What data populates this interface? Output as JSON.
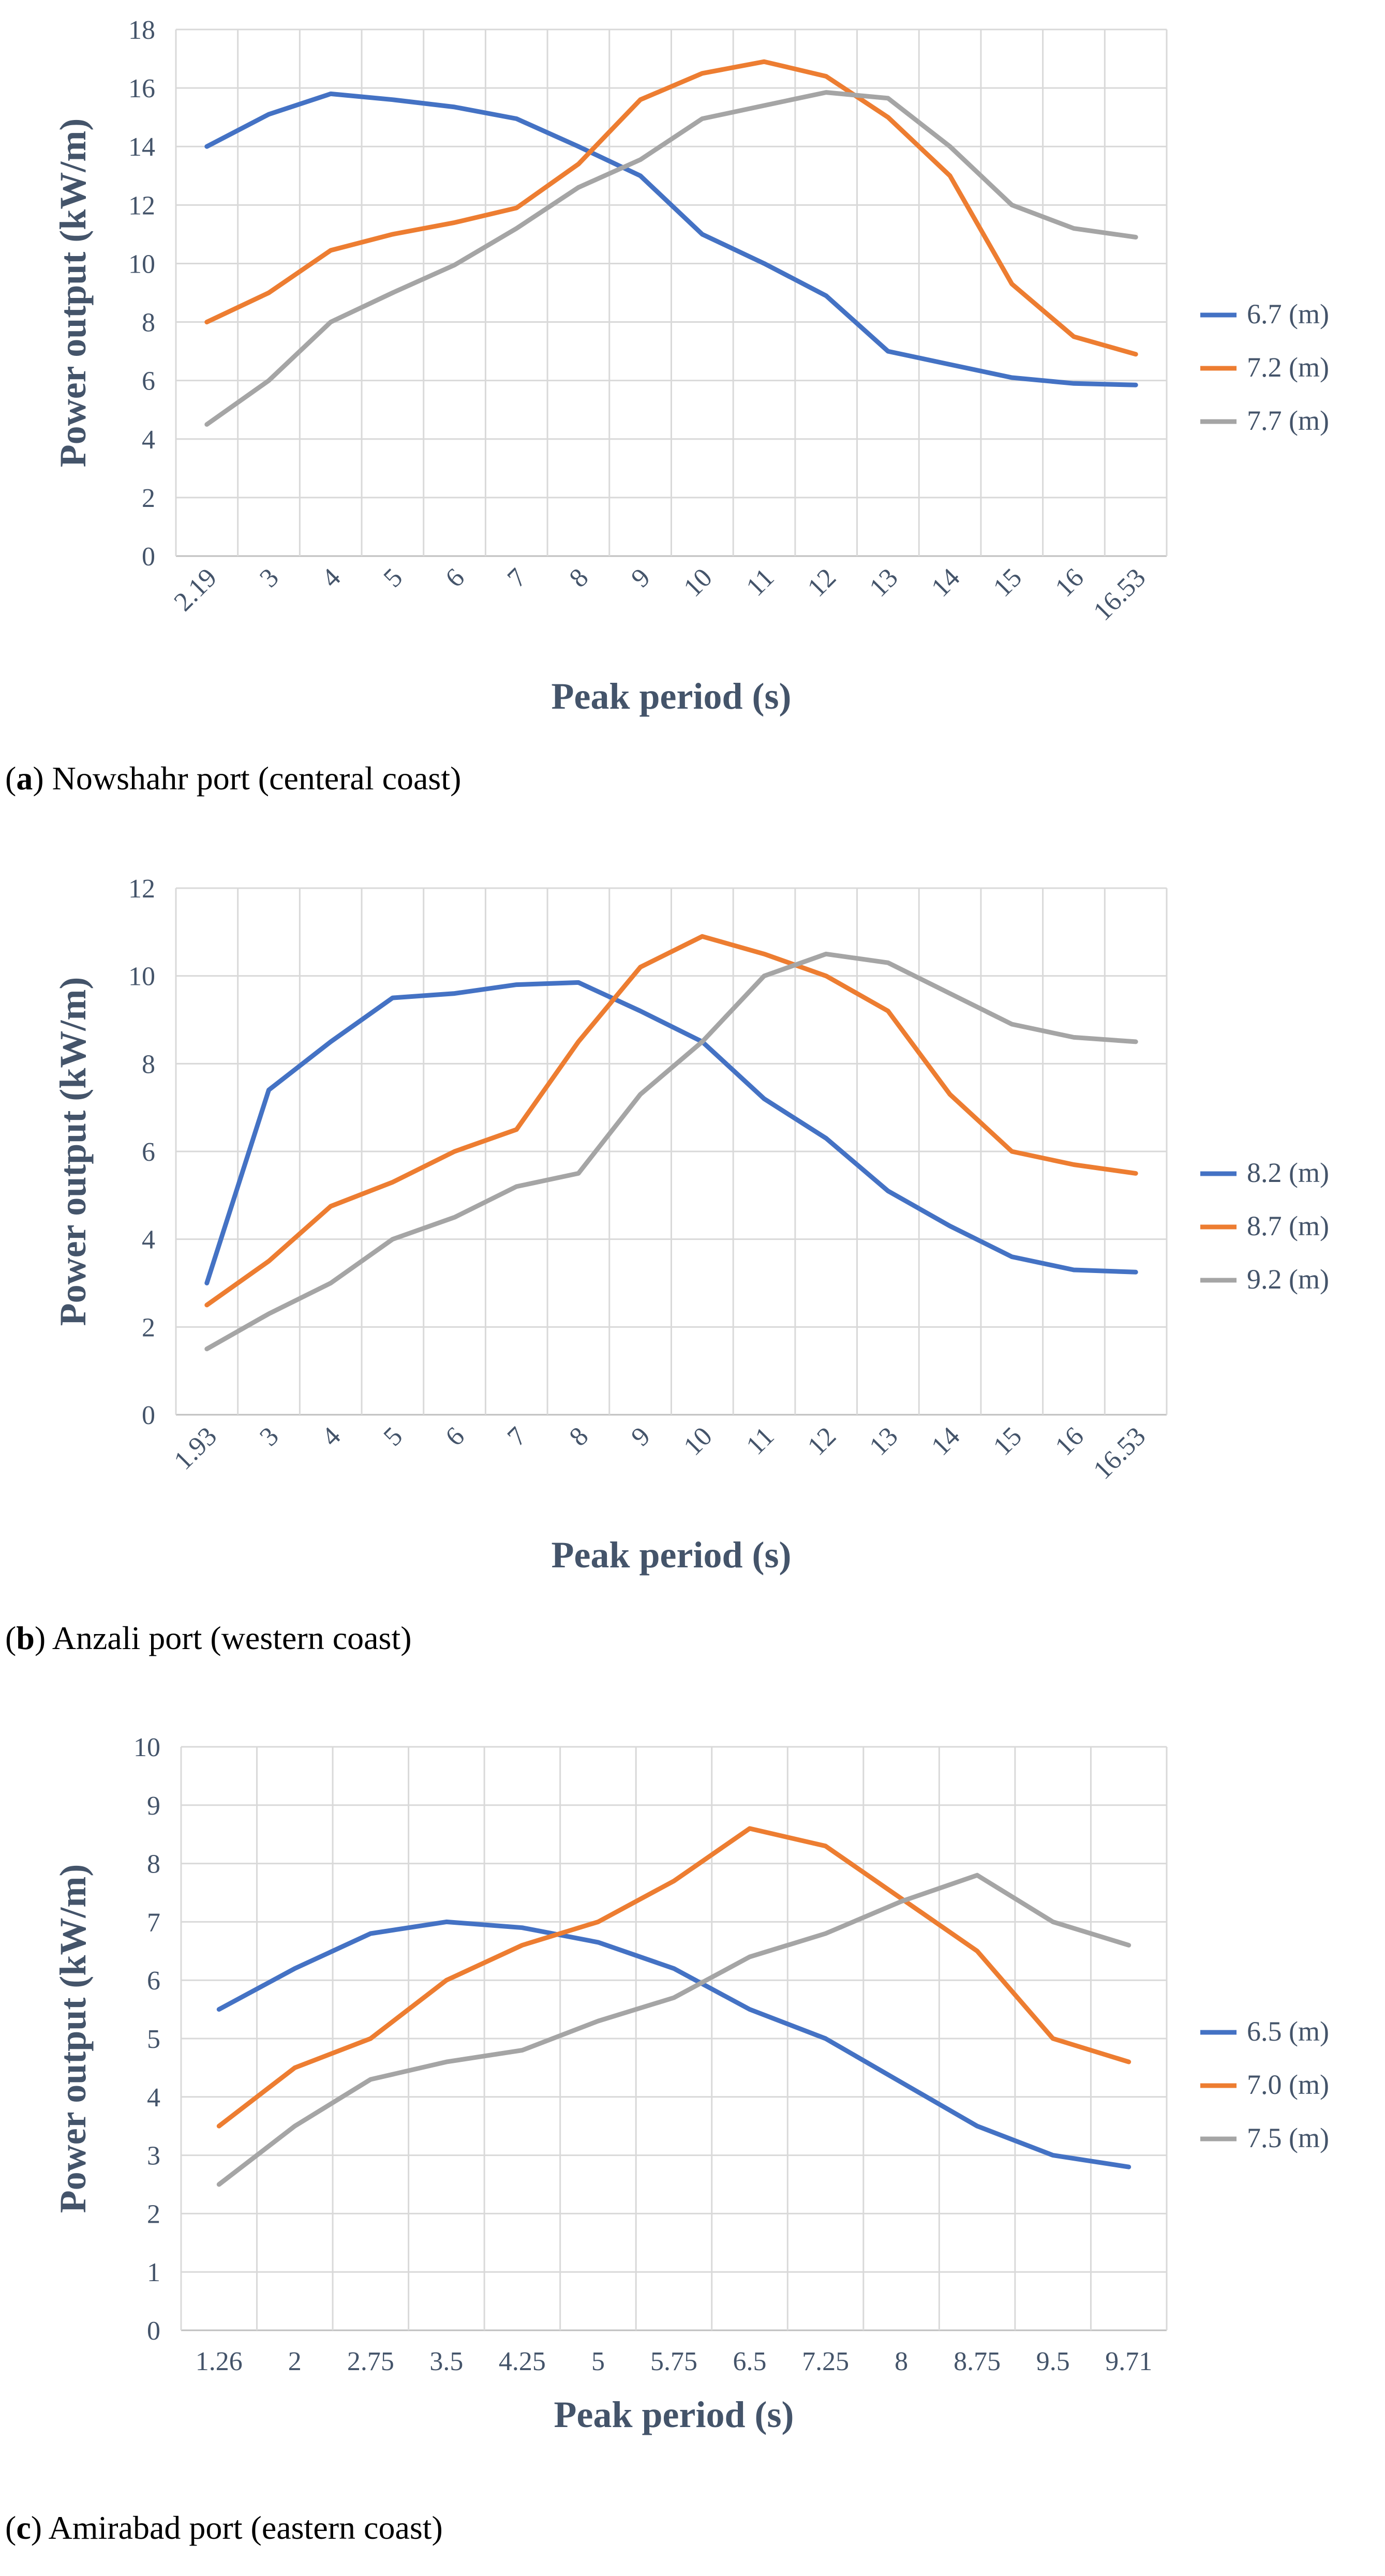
{
  "chart_data": [
    {
      "type": "line",
      "caption_letter": "a",
      "caption_text": "Nowshahr port (centeral coast)",
      "xlabel": "Peak period (s)",
      "ylabel": "Power output (kW/m)",
      "ylim": [
        0,
        18
      ],
      "ystep": 2,
      "categories": [
        "2.19",
        "3",
        "4",
        "5",
        "6",
        "7",
        "8",
        "9",
        "10",
        "11",
        "12",
        "13",
        "14",
        "15",
        "16",
        "16.53"
      ],
      "rotated_ticks": true,
      "series": [
        {
          "name": "6.7 (m)",
          "color": "#4472C4",
          "values": [
            14,
            15.1,
            15.8,
            15.6,
            15.35,
            14.95,
            14.0,
            13.0,
            11.0,
            10.0,
            8.9,
            7.0,
            6.55,
            6.1,
            5.9,
            5.85
          ]
        },
        {
          "name": "7.2 (m)",
          "color": "#ED7D31",
          "values": [
            8,
            9,
            10.45,
            11.0,
            11.4,
            11.9,
            13.4,
            15.6,
            16.5,
            16.9,
            16.4,
            15.0,
            13.0,
            9.3,
            7.5,
            6.9
          ]
        },
        {
          "name": "7.7 (m)",
          "color": "#A5A5A5",
          "values": [
            4.5,
            6,
            8,
            9.0,
            9.95,
            11.2,
            12.6,
            13.55,
            14.95,
            15.4,
            15.85,
            15.65,
            14.0,
            12.0,
            11.2,
            10.9
          ]
        }
      ]
    },
    {
      "type": "line",
      "caption_letter": "b",
      "caption_text": "Anzali port (western coast)",
      "xlabel": "Peak period (s)",
      "ylabel": "Power output (kW/m)",
      "ylim": [
        0,
        12
      ],
      "ystep": 2,
      "categories": [
        "1.93",
        "3",
        "4",
        "5",
        "6",
        "7",
        "8",
        "9",
        "10",
        "11",
        "12",
        "13",
        "14",
        "15",
        "16",
        "16.53"
      ],
      "rotated_ticks": true,
      "series": [
        {
          "name": "8.2 (m)",
          "color": "#4472C4",
          "values": [
            3.0,
            7.4,
            8.5,
            9.5,
            9.6,
            9.8,
            9.85,
            9.2,
            8.5,
            7.2,
            6.3,
            5.1,
            4.3,
            3.6,
            3.3,
            3.25
          ]
        },
        {
          "name": "8.7 (m)",
          "color": "#ED7D31",
          "values": [
            2.5,
            3.5,
            4.75,
            5.3,
            6.0,
            6.5,
            8.5,
            10.2,
            10.9,
            10.5,
            10.0,
            9.2,
            7.3,
            6.0,
            5.7,
            5.5
          ]
        },
        {
          "name": "9.2 (m)",
          "color": "#A5A5A5",
          "values": [
            1.5,
            2.3,
            3.0,
            4.0,
            4.5,
            5.2,
            5.5,
            7.3,
            8.5,
            10.0,
            10.5,
            10.3,
            9.6,
            8.9,
            8.6,
            8.5
          ]
        }
      ]
    },
    {
      "type": "line",
      "caption_letter": "c",
      "caption_text": "Amirabad port (eastern coast)",
      "xlabel": "Peak period (s)",
      "ylabel": "Power output (kW/m)",
      "ylim": [
        0,
        10
      ],
      "ystep": 1,
      "categories": [
        "1.26",
        "2",
        "2.75",
        "3.5",
        "4.25",
        "5",
        "5.75",
        "6.5",
        "7.25",
        "8",
        "8.75",
        "9.5",
        "9.71"
      ],
      "rotated_ticks": false,
      "series": [
        {
          "name": "6.5 (m)",
          "color": "#4472C4",
          "values": [
            5.5,
            6.2,
            6.8,
            7.0,
            6.9,
            6.65,
            6.2,
            5.5,
            5.0,
            4.25,
            3.5,
            3.0,
            2.8
          ]
        },
        {
          "name": "7.0 (m)",
          "color": "#ED7D31",
          "values": [
            3.5,
            4.5,
            5.0,
            6.0,
            6.6,
            7.0,
            7.7,
            8.6,
            8.3,
            7.4,
            6.5,
            5.0,
            4.6
          ]
        },
        {
          "name": "7.5 (m)",
          "color": "#A5A5A5",
          "values": [
            2.5,
            3.5,
            4.3,
            4.6,
            4.8,
            5.3,
            5.7,
            6.4,
            6.8,
            7.35,
            7.8,
            7.0,
            6.6
          ]
        }
      ]
    }
  ]
}
